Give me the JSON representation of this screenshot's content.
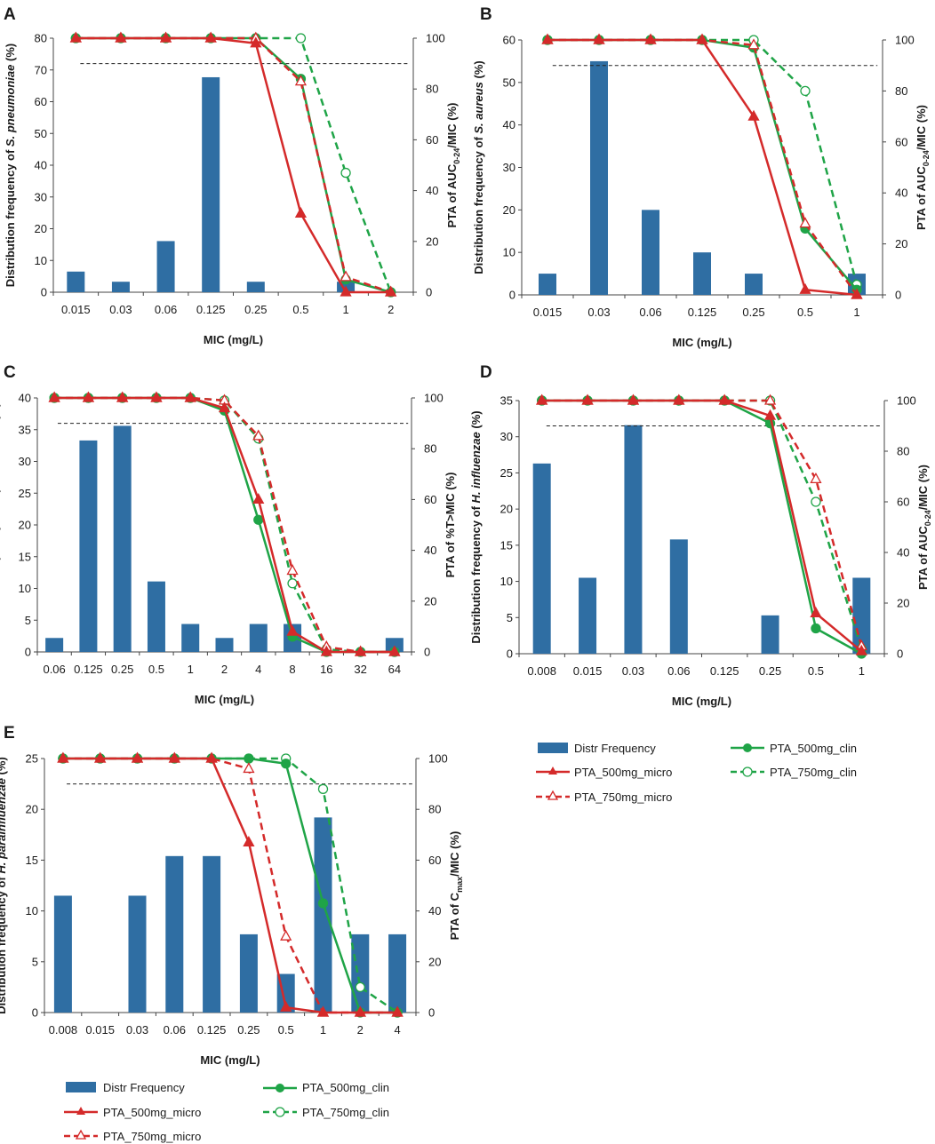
{
  "colors": {
    "bar": "#2f6ea3",
    "red": "#d42a2a",
    "green": "#1fa447",
    "ref": "#222222"
  },
  "legend": {
    "distr": "Distr Frequency",
    "p500m": "PTA_500mg_micro",
    "p750m": "PTA_750mg_micro",
    "p500c": "PTA_500mg_clin",
    "p750c": "PTA_750mg_clin"
  },
  "chart_data": [
    {
      "panel": "A",
      "type": "bar+line",
      "xlabel": "MIC (mg/L)",
      "ylabel_pre": "Distribution frequency of ",
      "ylabel_ital": "S. pneumoniae",
      "ylabel_post": " (%)",
      "y2label": {
        "pre": "PTA of AUC",
        "sub": "0-24",
        "post": "/MIC (%)"
      },
      "categories": [
        "0.015",
        "0.03",
        "0.06",
        "0.125",
        "0.25",
        "0.5",
        "1",
        "2"
      ],
      "ylim": [
        0,
        80
      ],
      "yticks": [
        0,
        10,
        20,
        30,
        40,
        50,
        60,
        70,
        80
      ],
      "y2lim": [
        0,
        100
      ],
      "y2ticks": [
        0,
        20,
        40,
        60,
        80,
        100
      ],
      "ref": 90,
      "bars": [
        6.5,
        3.3,
        16.1,
        67.7,
        3.3,
        0,
        3.3,
        0
      ],
      "series": [
        {
          "name": "PTA_500mg_micro",
          "values": [
            100,
            100,
            100,
            100,
            98,
            31,
            0,
            0
          ]
        },
        {
          "name": "PTA_750mg_micro",
          "values": [
            100,
            100,
            100,
            100,
            100,
            83,
            6,
            0
          ]
        },
        {
          "name": "PTA_500mg_clin",
          "values": [
            100,
            100,
            100,
            100,
            100,
            84,
            5,
            0
          ]
        },
        {
          "name": "PTA_750mg_clin",
          "values": [
            100,
            100,
            100,
            100,
            100,
            100,
            47,
            0
          ]
        }
      ]
    },
    {
      "panel": "B",
      "type": "bar+line",
      "xlabel": "MIC (mg/L)",
      "ylabel_pre": "Distribution frequency of ",
      "ylabel_ital": "S. aureus",
      "ylabel_post": " (%)",
      "y2label": {
        "pre": "PTA of AUC",
        "sub": "0-24",
        "post": "/MIC (%)"
      },
      "categories": [
        "0.015",
        "0.03",
        "0.06",
        "0.125",
        "0.25",
        "0.5",
        "1"
      ],
      "ylim": [
        0,
        60
      ],
      "yticks": [
        0,
        10,
        20,
        30,
        40,
        50,
        60
      ],
      "y2lim": [
        0,
        100
      ],
      "y2ticks": [
        0,
        20,
        40,
        60,
        80,
        100
      ],
      "ref": 90,
      "bars": [
        5,
        55,
        20,
        10,
        5,
        0,
        5
      ],
      "series": [
        {
          "name": "PTA_500mg_micro",
          "values": [
            100,
            100,
            100,
            100,
            70,
            2,
            0
          ]
        },
        {
          "name": "PTA_750mg_micro",
          "values": [
            100,
            100,
            100,
            100,
            98,
            28,
            0
          ]
        },
        {
          "name": "PTA_500mg_clin",
          "values": [
            100,
            100,
            100,
            100,
            97,
            26,
            2
          ]
        },
        {
          "name": "PTA_750mg_clin",
          "values": [
            100,
            100,
            100,
            100,
            100,
            80,
            4
          ]
        }
      ]
    },
    {
      "panel": "C",
      "type": "bar+line",
      "xlabel": "MIC (mg/L)",
      "ylabel_pre": "Distribution frequency of ",
      "ylabel_ital": "K. pneumoniae",
      "ylabel_post": " (%)",
      "y2label": {
        "pre": "PTA of %T>MIC (%)",
        "sub": "",
        "post": ""
      },
      "categories": [
        "0.06",
        "0.125",
        "0.25",
        "0.5",
        "1",
        "2",
        "4",
        "8",
        "16",
        "32",
        "64"
      ],
      "ylim": [
        0,
        40
      ],
      "yticks": [
        0,
        5,
        10,
        15,
        20,
        25,
        30,
        35,
        40
      ],
      "y2lim": [
        0,
        100
      ],
      "y2ticks": [
        0,
        20,
        40,
        60,
        80,
        100
      ],
      "ref": 90,
      "bars": [
        2.2,
        33.3,
        35.6,
        11.1,
        4.4,
        2.2,
        4.4,
        4.4,
        0,
        0,
        2.2
      ],
      "series": [
        {
          "name": "PTA_500mg_micro",
          "values": [
            100,
            100,
            100,
            100,
            100,
            96,
            60,
            8,
            0,
            0,
            0
          ]
        },
        {
          "name": "PTA_750mg_micro",
          "values": [
            100,
            100,
            100,
            100,
            100,
            99,
            85,
            32,
            2,
            0,
            0
          ]
        },
        {
          "name": "PTA_500mg_clin",
          "values": [
            100,
            100,
            100,
            100,
            100,
            95,
            52,
            6,
            0,
            0,
            0
          ]
        },
        {
          "name": "PTA_750mg_clin",
          "values": [
            100,
            100,
            100,
            100,
            100,
            99,
            84,
            27,
            1,
            0,
            0
          ]
        }
      ]
    },
    {
      "panel": "D",
      "type": "bar+line",
      "xlabel": "MIC (mg/L)",
      "ylabel_pre": "Distribution frequency of ",
      "ylabel_ital": "H. influenzae",
      "ylabel_post": " (%)",
      "y2label": {
        "pre": "PTA of AUC",
        "sub": "0-24",
        "post": "/MIC (%)"
      },
      "categories": [
        "0.008",
        "0.015",
        "0.03",
        "0.06",
        "0.125",
        "0.25",
        "0.5",
        "1"
      ],
      "ylim": [
        0,
        35
      ],
      "yticks": [
        0,
        5,
        10,
        15,
        20,
        25,
        30,
        35
      ],
      "y2lim": [
        0,
        100
      ],
      "y2ticks": [
        0,
        20,
        40,
        60,
        80,
        100
      ],
      "ref": 90,
      "bars": [
        26.3,
        10.5,
        31.6,
        15.8,
        0,
        5.3,
        0,
        10.5
      ],
      "series": [
        {
          "name": "PTA_500mg_micro",
          "values": [
            100,
            100,
            100,
            100,
            100,
            94,
            16,
            1
          ]
        },
        {
          "name": "PTA_750mg_micro",
          "values": [
            100,
            100,
            100,
            100,
            100,
            100,
            69,
            3
          ]
        },
        {
          "name": "PTA_500mg_clin",
          "values": [
            100,
            100,
            100,
            100,
            100,
            91,
            10,
            0
          ]
        },
        {
          "name": "PTA_750mg_clin",
          "values": [
            100,
            100,
            100,
            100,
            100,
            100,
            60,
            2
          ]
        }
      ]
    },
    {
      "panel": "E",
      "type": "bar+line",
      "xlabel": "MIC (mg/L)",
      "ylabel_pre": "Distribution frequency of ",
      "ylabel_ital": "H. parainfluenzae",
      "ylabel_post": " (%)",
      "y2label": {
        "pre": "PTA of C",
        "sub": "max",
        "post": "/MIC (%)"
      },
      "categories": [
        "0.008",
        "0.015",
        "0.03",
        "0.06",
        "0.125",
        "0.25",
        "0.5",
        "1",
        "2",
        "4"
      ],
      "ylim": [
        0,
        25
      ],
      "yticks": [
        0,
        5,
        10,
        15,
        20,
        25
      ],
      "y2lim": [
        0,
        100
      ],
      "y2ticks": [
        0,
        20,
        40,
        60,
        80,
        100
      ],
      "ref": 90,
      "bars": [
        11.5,
        0,
        11.5,
        15.4,
        15.4,
        7.7,
        3.8,
        19.2,
        7.7,
        7.7
      ],
      "series": [
        {
          "name": "PTA_500mg_micro",
          "values": [
            100,
            100,
            100,
            100,
            100,
            67,
            2,
            0,
            0,
            0
          ]
        },
        {
          "name": "PTA_750mg_micro",
          "values": [
            100,
            100,
            100,
            100,
            100,
            96,
            30,
            0,
            0,
            0
          ]
        },
        {
          "name": "PTA_500mg_clin",
          "values": [
            100,
            100,
            100,
            100,
            100,
            100,
            98,
            43,
            0,
            0
          ]
        },
        {
          "name": "PTA_750mg_clin",
          "values": [
            100,
            100,
            100,
            100,
            100,
            100,
            100,
            88,
            10,
            0
          ]
        }
      ]
    }
  ]
}
